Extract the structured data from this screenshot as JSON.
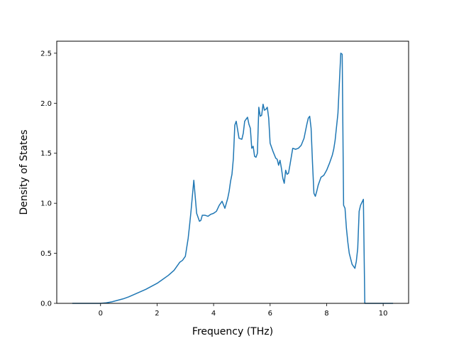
{
  "chart_data": {
    "type": "line",
    "title": "",
    "xlabel": "Frequency (THz)",
    "ylabel": "Density of States",
    "xlim": [
      -1.55,
      10.9
    ],
    "ylim": [
      0.0,
      2.62
    ],
    "xticks": [
      0,
      2,
      4,
      6,
      8,
      10
    ],
    "xtick_labels": [
      "0",
      "2",
      "4",
      "6",
      "8",
      "10"
    ],
    "yticks": [
      0.0,
      0.5,
      1.0,
      1.5,
      2.0,
      2.5
    ],
    "ytick_labels": [
      "0.0",
      "0.5",
      "1.0",
      "1.5",
      "2.0",
      "2.5"
    ],
    "grid": false,
    "line_color": "#1f77b4",
    "series": [
      {
        "x": [
          -1.0,
          -0.5,
          0.0,
          0.2,
          0.4,
          0.6,
          0.8,
          1.0,
          1.2,
          1.4,
          1.6,
          1.8,
          2.0,
          2.2,
          2.4,
          2.6,
          2.8,
          2.9,
          3.0,
          3.1,
          3.15,
          3.2,
          3.3,
          3.4,
          3.5,
          3.55,
          3.6,
          3.7,
          3.8,
          3.9,
          4.0,
          4.1,
          4.15,
          4.2,
          4.3,
          4.4,
          4.5,
          4.55,
          4.6,
          4.65,
          4.7,
          4.75,
          4.8,
          4.9,
          5.0,
          5.05,
          5.1,
          5.15,
          5.2,
          5.25,
          5.3,
          5.35,
          5.4,
          5.45,
          5.5,
          5.55,
          5.6,
          5.65,
          5.7,
          5.75,
          5.8,
          5.85,
          5.9,
          5.95,
          6.0,
          6.1,
          6.2,
          6.25,
          6.3,
          6.35,
          6.4,
          6.45,
          6.5,
          6.55,
          6.6,
          6.65,
          6.7,
          6.8,
          6.9,
          7.0,
          7.1,
          7.2,
          7.3,
          7.35,
          7.4,
          7.45,
          7.5,
          7.55,
          7.6,
          7.65,
          7.7,
          7.8,
          7.9,
          8.0,
          8.1,
          8.2,
          8.25,
          8.3,
          8.4,
          8.5,
          8.55,
          8.6,
          8.65,
          8.7,
          8.75,
          8.8,
          8.9,
          9.0,
          9.05,
          9.1,
          9.15,
          9.2,
          9.3,
          9.35,
          9.4,
          9.45,
          9.5,
          10.0,
          10.35
        ],
        "y": [
          0.0,
          0.0,
          0.0,
          0.005,
          0.015,
          0.03,
          0.045,
          0.065,
          0.09,
          0.115,
          0.14,
          0.17,
          0.2,
          0.24,
          0.28,
          0.33,
          0.41,
          0.43,
          0.47,
          0.65,
          0.78,
          0.92,
          1.23,
          0.9,
          0.82,
          0.83,
          0.88,
          0.88,
          0.87,
          0.89,
          0.9,
          0.92,
          0.95,
          0.98,
          1.02,
          0.95,
          1.05,
          1.12,
          1.22,
          1.29,
          1.45,
          1.78,
          1.82,
          1.65,
          1.64,
          1.7,
          1.82,
          1.84,
          1.86,
          1.79,
          1.75,
          1.55,
          1.57,
          1.47,
          1.46,
          1.5,
          1.96,
          1.87,
          1.88,
          1.99,
          1.93,
          1.94,
          1.96,
          1.85,
          1.6,
          1.52,
          1.45,
          1.44,
          1.38,
          1.43,
          1.35,
          1.25,
          1.2,
          1.33,
          1.29,
          1.3,
          1.38,
          1.55,
          1.54,
          1.55,
          1.58,
          1.65,
          1.79,
          1.85,
          1.87,
          1.75,
          1.4,
          1.1,
          1.07,
          1.12,
          1.18,
          1.26,
          1.28,
          1.33,
          1.4,
          1.48,
          1.54,
          1.63,
          1.9,
          2.5,
          2.49,
          0.98,
          0.95,
          0.75,
          0.61,
          0.5,
          0.39,
          0.35,
          0.42,
          0.55,
          0.92,
          0.98,
          1.04,
          0.0,
          0.0,
          0.0,
          0.0,
          0.0,
          0.0
        ],
        "color": "#1f77b4"
      }
    ]
  }
}
